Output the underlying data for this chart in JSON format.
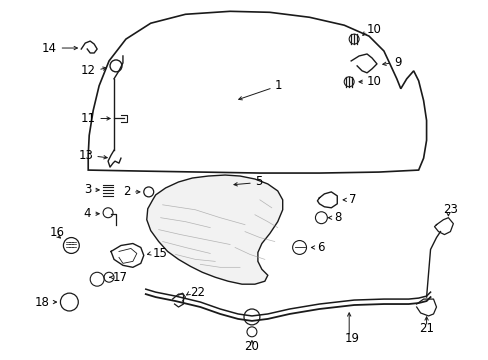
{
  "background_color": "#ffffff",
  "line_color": "#1a1a1a",
  "text_color": "#000000",
  "label_fs": 8.5
}
